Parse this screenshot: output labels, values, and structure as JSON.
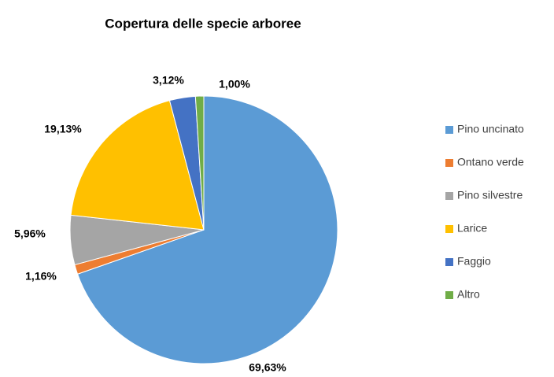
{
  "chart_data": {
    "type": "pie",
    "title": "Copertura delle specie arboree",
    "categories": [
      "Pino uncinato",
      "Ontano verde",
      "Pino silvestre",
      "Larice",
      "Faggio",
      "Altro"
    ],
    "values": [
      69.63,
      1.16,
      5.96,
      19.13,
      3.12,
      1.0
    ],
    "value_labels": [
      "69,63%",
      "1,16%",
      "5,96%",
      "19,13%",
      "3,12%",
      "1,00%"
    ],
    "colors": [
      "#5b9bd5",
      "#ed7d31",
      "#a5a5a5",
      "#ffc000",
      "#4472c4",
      "#70ad47"
    ],
    "legend": "right"
  }
}
